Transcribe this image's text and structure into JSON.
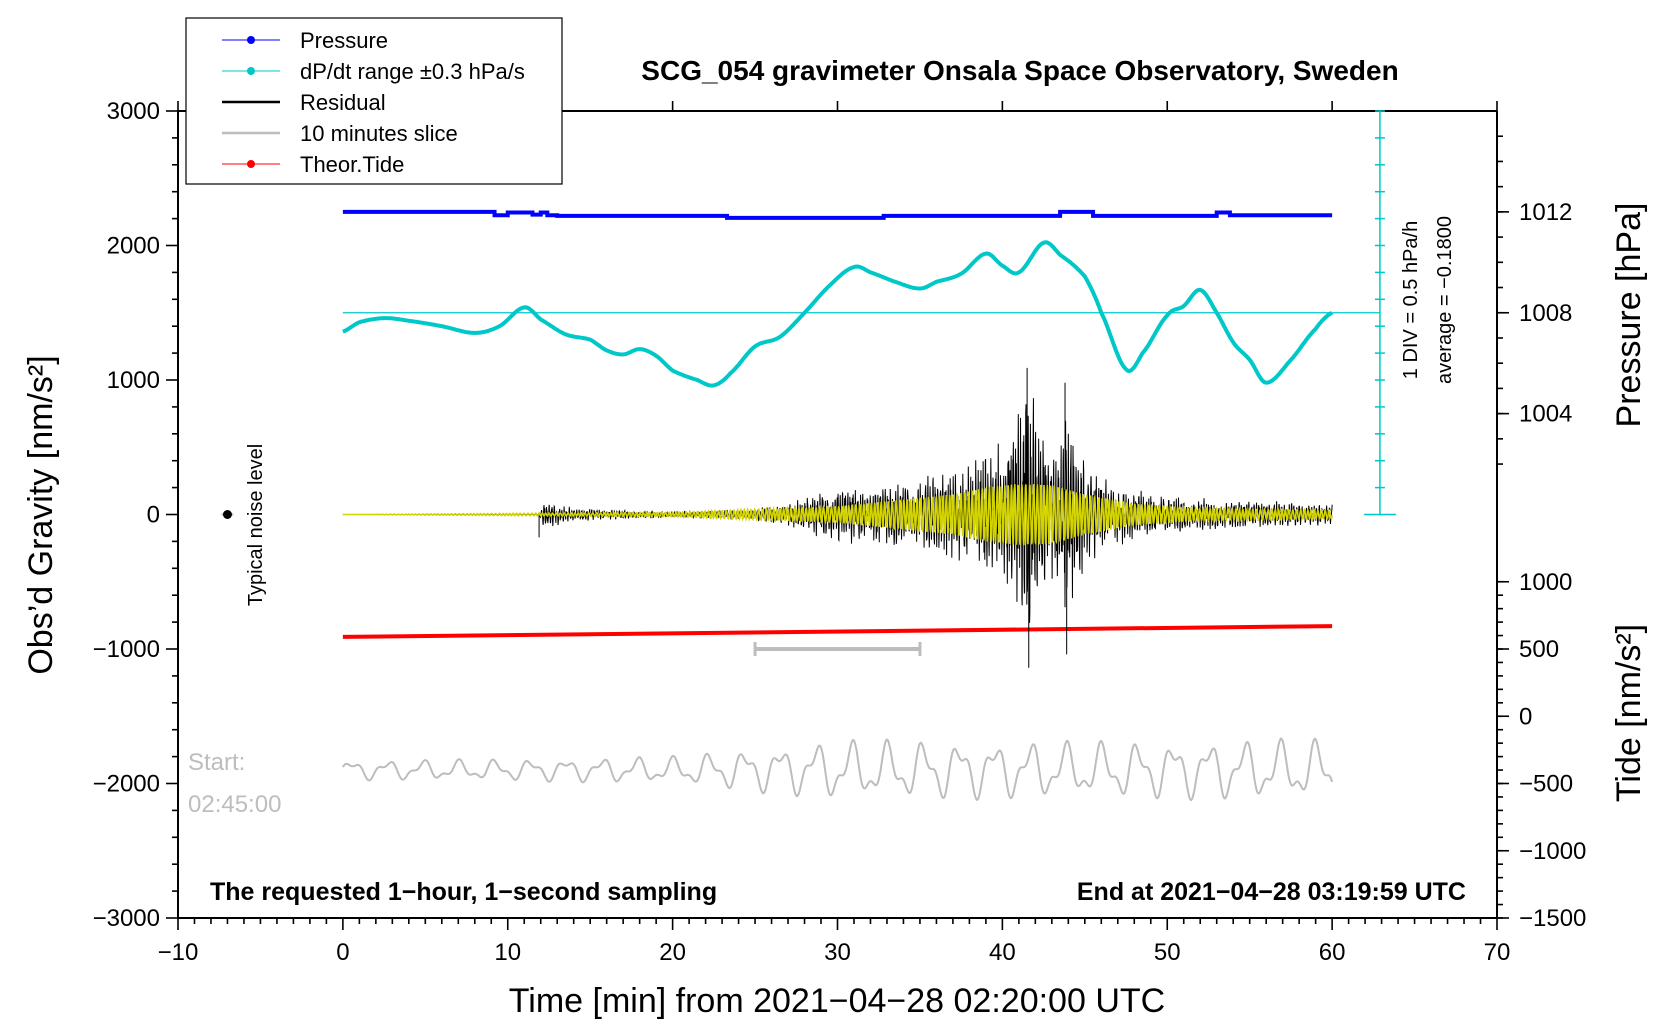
{
  "chart_data": {
    "type": "line",
    "title": "SCG_054 gravimeter Onsala Space Observatory, Sweden",
    "xlabel": "Time [min] from 2021−04−28 02:20:00 UTC",
    "ylabel_left": "Obs’d Gravity [nm/s²]",
    "ylabel_right_top": "Pressure [hPa]",
    "ylabel_right_bottom": "Tide [nm/s²]",
    "xlim": [
      -10,
      70
    ],
    "ylim_left": [
      -3000,
      3000
    ],
    "x_ticks": [
      "−10",
      "0",
      "10",
      "20",
      "30",
      "40",
      "50",
      "60",
      "70"
    ],
    "y_ticks_left": [
      "3000",
      "2000",
      "1000",
      "0",
      "−1000",
      "−2000",
      "−3000"
    ],
    "pressure_ticks": [
      "1012",
      "1008",
      "1004"
    ],
    "tide_ticks": [
      "1000",
      "500",
      "0",
      "−500",
      "−1000",
      "−1500"
    ],
    "legend": [
      {
        "label": "Pressure",
        "color": "#0000ff",
        "marker": "dot"
      },
      {
        "label": "dP/dt range ±0.3 hPa/s",
        "color": "#00c8c8",
        "marker": "dot"
      },
      {
        "label": "Residual",
        "color": "#000000",
        "marker": "line"
      },
      {
        "label": "10 minutes slice",
        "color": "#bdbdbd",
        "marker": "line"
      },
      {
        "label": "Theor.Tide",
        "color": "#ff0000",
        "marker": "dot"
      }
    ],
    "annotations": {
      "noise_label": "Typical noise level",
      "start_label": "Start:",
      "start_time": "02:45:00",
      "bottom_left": "The requested 1−hour, 1−second sampling",
      "bottom_right": "End at 2021−04−28 03:19:59 UTC",
      "div_label": "1 DIV = 0.5 hPa/h",
      "average_label": "average = −0.1800"
    },
    "series": {
      "pressure": {
        "name": "Pressure",
        "color": "#0000ff",
        "x": [
          0,
          9,
          9.2,
          10,
          11.5,
          12,
          12.4,
          13,
          23.3,
          32.8,
          43.5,
          45.5,
          53,
          53.8,
          60
        ],
        "y": [
          2250,
          2250,
          2225,
          2245,
          2230,
          2245,
          2225,
          2220,
          2205,
          2220,
          2250,
          2220,
          2245,
          2225,
          2225
        ]
      },
      "dpdt": {
        "name": "dP/dt",
        "color": "#00c8c8",
        "baseline": 1500,
        "x": [
          0,
          1,
          2.5,
          4,
          6,
          8,
          9.5,
          11,
          12,
          13.5,
          15,
          16,
          17,
          18,
          19,
          20,
          21.5,
          22.5,
          23.5,
          25,
          26.5,
          28,
          29.5,
          31,
          32,
          33.5,
          35,
          36,
          37.5,
          39,
          40,
          41,
          42.5,
          43.5,
          45,
          46,
          47.5,
          48.5,
          50,
          51,
          52,
          53,
          54,
          55,
          56,
          57.5,
          59,
          60
        ],
        "y": [
          1360,
          1430,
          1460,
          1440,
          1400,
          1350,
          1400,
          1540,
          1450,
          1340,
          1300,
          1220,
          1190,
          1230,
          1180,
          1070,
          1000,
          960,
          1050,
          1250,
          1320,
          1500,
          1700,
          1840,
          1800,
          1730,
          1680,
          1730,
          1790,
          1940,
          1850,
          1800,
          2020,
          1930,
          1770,
          1500,
          1080,
          1200,
          1480,
          1550,
          1670,
          1500,
          1280,
          1150,
          980,
          1150,
          1380,
          1500
        ]
      },
      "residual": {
        "name": "Residual",
        "color": "#000000",
        "envelope": {
          "x": [
            0,
            11.9,
            12.1,
            14,
            20,
            25,
            27,
            30,
            35,
            38,
            40,
            41.5,
            43,
            43.8,
            45,
            47,
            50,
            55,
            60
          ],
          "amp": [
            0,
            0,
            90,
            40,
            20,
            40,
            70,
            180,
            230,
            320,
            450,
            880,
            420,
            760,
            330,
            190,
            120,
            90,
            70
          ]
        },
        "peaks": [
          {
            "x": 11.9,
            "y": -170
          },
          {
            "x": 41.5,
            "y": 1090
          },
          {
            "x": 41.6,
            "y": -1140
          },
          {
            "x": 43.8,
            "y": 980
          },
          {
            "x": 43.9,
            "y": -1040
          }
        ]
      },
      "filtered": {
        "name": "Filtered residual",
        "color": "#d4d400",
        "envelope": {
          "x": [
            0,
            12,
            20,
            30,
            37,
            39,
            41,
            43,
            45,
            48,
            52,
            60
          ],
          "amp": [
            0,
            10,
            15,
            60,
            150,
            200,
            230,
            220,
            150,
            80,
            45,
            30
          ]
        }
      },
      "slice": {
        "name": "10 minutes slice",
        "color": "#bdbdbd",
        "center": -1900,
        "amp": {
          "x": [
            0,
            10,
            20,
            30,
            40,
            50,
            60
          ],
          "a": [
            70,
            75,
            95,
            210,
            200,
            200,
            220
          ]
        }
      },
      "tide": {
        "name": "Theor.Tide",
        "color": "#ff0000",
        "x": [
          0,
          60
        ],
        "y": [
          -910,
          -830
        ]
      },
      "slice_marker": {
        "x": [
          25,
          35
        ],
        "y": -1000,
        "color": "#bdbdbd"
      },
      "noise_point": {
        "x": -7,
        "y": 0,
        "err": 40
      }
    }
  }
}
